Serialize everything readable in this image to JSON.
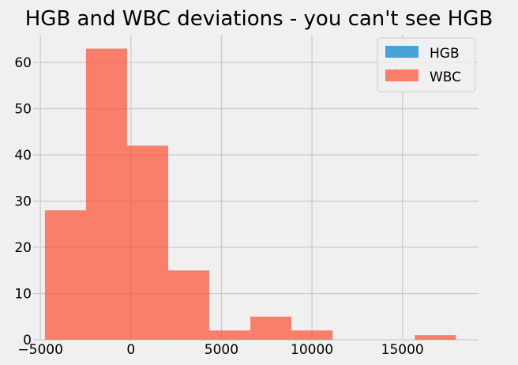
{
  "chart_data": {
    "type": "bar",
    "title": "HGB and WBC deviations - you can't see HGB",
    "xlabel": "",
    "ylabel": "",
    "xlim": [
      -5400,
      19200
    ],
    "ylim": [
      0,
      66
    ],
    "xticks": [
      -5000,
      0,
      5000,
      10000,
      15000
    ],
    "xtick_labels": [
      "−5000",
      "0",
      "5000",
      "10000",
      "15000"
    ],
    "yticks": [
      0,
      10,
      20,
      30,
      40,
      50,
      60
    ],
    "yticks_labels": [
      "0",
      "10",
      "20",
      "30",
      "40",
      "50",
      "60"
    ],
    "grid": true,
    "legend_position": "top-right",
    "series": [
      {
        "name": "HGB",
        "color": "#1b8fd1",
        "bins": [],
        "counts": []
      },
      {
        "name": "WBC",
        "color": "#fc4f30",
        "bins": [
          -4750,
          -2480,
          -210,
          2060,
          4330,
          6600,
          8870,
          11140,
          13410,
          15680,
          17950
        ],
        "counts": [
          28,
          63,
          42,
          15,
          2,
          5,
          2,
          0,
          0,
          1
        ]
      }
    ]
  }
}
